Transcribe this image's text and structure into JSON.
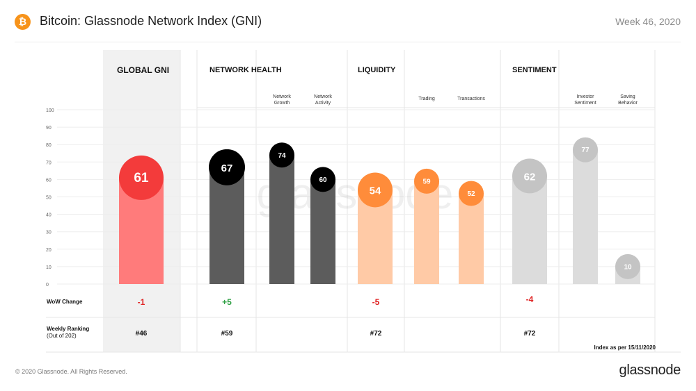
{
  "header": {
    "logo_glyph": "₿",
    "title": "Bitcoin: Glassnode Network Index (GNI)",
    "week": "Week 46, 2020"
  },
  "colors": {
    "global_bar": "#ff7b7b",
    "global_circle": "#f33b3b",
    "health_bar": "#5c5c5c",
    "health_circle": "#000000",
    "liquidity_bar": "#ffcaa6",
    "liquidity_circle": "#ff8c3a",
    "sentiment_bar": "#dcdcdc",
    "sentiment_circle": "#c4c4c4",
    "positive": "#2ea043",
    "negative": "#e02424",
    "global_panel": "#f1f1f1"
  },
  "chart_data": {
    "type": "bar",
    "ylim": [
      0,
      100
    ],
    "y_ticks": [
      "0",
      "10",
      "20",
      "30",
      "40",
      "50",
      "60",
      "70",
      "80",
      "90",
      "100"
    ],
    "watermark": "glassnode",
    "sections": [
      {
        "key": "global",
        "title": "GLOBAL GNI",
        "wow": "-1",
        "wow_sign": "negative",
        "ranking": "#46"
      },
      {
        "key": "health",
        "title": "NETWORK HEALTH",
        "wow": "+5",
        "wow_sign": "positive",
        "ranking": "#59"
      },
      {
        "key": "liquidity",
        "title": "LIQUIDITY",
        "wow": "-5",
        "wow_sign": "negative",
        "ranking": "#72"
      },
      {
        "key": "sentiment",
        "title": "SENTIMENT",
        "wow": "-4",
        "wow_sign": "negative",
        "ranking": "#72"
      }
    ],
    "bars": [
      {
        "section": "global",
        "label": "",
        "value": 61,
        "main": true
      },
      {
        "section": "health",
        "label": "",
        "value": 67,
        "main": true
      },
      {
        "section": "health",
        "label": "Network\nGrowth",
        "value": 74,
        "main": false
      },
      {
        "section": "health",
        "label": "Network\nActivity",
        "value": 60,
        "main": false
      },
      {
        "section": "liquidity",
        "label": "",
        "value": 54,
        "main": true
      },
      {
        "section": "liquidity",
        "label": "Trading",
        "value": 59,
        "main": false
      },
      {
        "section": "liquidity",
        "label": "Transactions",
        "value": 52,
        "main": false
      },
      {
        "section": "sentiment",
        "label": "",
        "value": 62,
        "main": true
      },
      {
        "section": "sentiment",
        "label": "Investor\nSentiment",
        "value": 77,
        "main": false
      },
      {
        "section": "sentiment",
        "label": "Saving\nBehavior",
        "value": 10,
        "main": false
      }
    ],
    "row_labels": {
      "wow": "WoW  Change",
      "ranking": "Weekly Ranking",
      "ranking_sub": "(Out of 202)"
    },
    "index_note": "Index as per 15/11/2020"
  },
  "footer": {
    "copyright": "© 2020 Glassnode. All Rights Reserved.",
    "brand": "glassnode"
  }
}
